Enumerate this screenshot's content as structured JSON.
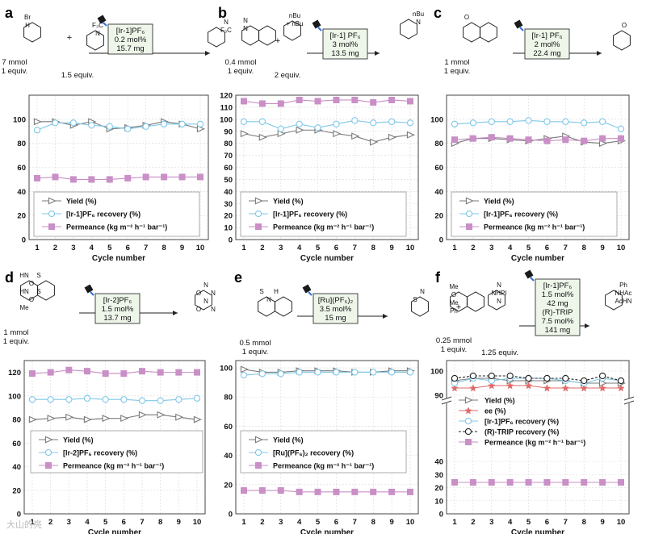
{
  "figure": {
    "watermark": "大山的亮"
  },
  "panels": [
    {
      "letter": "a",
      "scheme": {
        "catalyst_lines": [
          "[Ir-1]PF₆",
          "0.2 mol%",
          "15.7 mg"
        ],
        "reactant1": [
          "7 mmol",
          "1 equiv."
        ],
        "reactant2": [
          "1.5 equiv."
        ],
        "atoms": [
          "Br",
          "F₃C",
          "N",
          "H",
          "N",
          "F₃C"
        ]
      }
    },
    {
      "letter": "b",
      "scheme": {
        "catalyst_lines": [
          "[Ir-1] PF₆",
          "3 mol%",
          "13.5 mg"
        ],
        "reactant1": [
          "0.4 mmol",
          "1 equiv."
        ],
        "reactant2": [
          "2 equiv."
        ],
        "atoms": [
          "N",
          "nBu",
          "nBu",
          "N",
          "+ nBu",
          "N"
        ]
      }
    },
    {
      "letter": "c",
      "scheme": {
        "catalyst_lines": [
          "[Ir-1] PF₆",
          "2 mol%",
          "22.4 mg"
        ],
        "reactant1": [
          "1 mmol",
          "1 equiv."
        ],
        "reactant2": [],
        "atoms": [
          "O",
          "O"
        ]
      }
    },
    {
      "letter": "d",
      "scheme": {
        "catalyst_lines": [
          "[Ir-2]PF₆",
          "1.5 mol%",
          "13.7 mg"
        ],
        "reactant1": [
          "1 mmol",
          "1 equiv."
        ],
        "reactant2": [],
        "atoms": [
          "HN",
          "N",
          "S",
          "O",
          "O",
          "N",
          "HN",
          "N",
          "S",
          "O",
          "O",
          "N",
          "Me"
        ]
      }
    },
    {
      "letter": "e",
      "scheme": {
        "catalyst_lines": [
          "[Ru](PF₆)₂",
          "3.5 mol%",
          "15 mg"
        ],
        "reactant1": [
          "0.5 mmol",
          "1 equiv."
        ],
        "reactant2": [],
        "atoms": [
          "S",
          "N",
          "H",
          "S",
          "N"
        ]
      }
    },
    {
      "letter": "f",
      "scheme": {
        "catalyst_lines": [
          "[Ir-1]PF₆",
          "1.5 mol%",
          "42 mg",
          "(R)-TRIP",
          "7.5 mol%",
          "141 mg"
        ],
        "reactant1": [
          "0.25 mmol",
          "1 equiv."
        ],
        "reactant2": [
          "1.25 equiv."
        ],
        "atoms": [
          "Me",
          "N",
          "Ph",
          "O",
          "NHPI",
          "NHAc",
          "Me",
          "N",
          "AcHN",
          "Ph"
        ]
      }
    }
  ],
  "chart_data": [
    {
      "panel": "a",
      "type": "line",
      "xlabel": "Cycle number",
      "ylabel": "",
      "x": [
        1,
        2,
        3,
        4,
        5,
        6,
        7,
        8,
        9,
        10
      ],
      "ylim": [
        0,
        120
      ],
      "yticks": [
        0,
        20,
        40,
        60,
        80,
        100
      ],
      "grid": true,
      "legend_position": "bottom",
      "series": [
        {
          "name": "Yield (%)",
          "marker": "triangle",
          "color": "#7a7a7a",
          "values": [
            98,
            98,
            95,
            98,
            92,
            93,
            95,
            98,
            96,
            92
          ]
        },
        {
          "name": "[Ir-1]PF₆ recovery (%)",
          "marker": "circle",
          "color": "#7fc8e8",
          "values": [
            91,
            97,
            97,
            95,
            94,
            92,
            94,
            96,
            96,
            96
          ]
        },
        {
          "name": "Permeance (kg m⁻² h⁻¹ bar⁻¹)",
          "marker": "square",
          "color": "#c98fc6",
          "values": [
            51,
            52,
            50,
            50,
            50,
            51,
            52,
            52,
            52,
            52
          ]
        }
      ]
    },
    {
      "panel": "b",
      "type": "line",
      "xlabel": "Cycle number",
      "ylabel": "",
      "x": [
        1,
        2,
        3,
        4,
        5,
        6,
        7,
        8,
        9,
        10
      ],
      "ylim": [
        0,
        120
      ],
      "yticks": [
        0,
        10,
        20,
        30,
        40,
        50,
        60,
        70,
        80,
        90,
        100,
        110,
        120
      ],
      "grid": true,
      "legend_position": "bottom",
      "series": [
        {
          "name": "Yield (%)",
          "marker": "triangle",
          "color": "#7a7a7a",
          "values": [
            88,
            85,
            88,
            91,
            91,
            88,
            86,
            81,
            85,
            87
          ]
        },
        {
          "name": "[Ir-1]PF₆ recovery (%)",
          "marker": "circle",
          "color": "#7fc8e8",
          "values": [
            98,
            98,
            92,
            96,
            93,
            96,
            99,
            97,
            98,
            97
          ]
        },
        {
          "name": "Permeance (kg m⁻² h⁻¹ bar⁻¹)",
          "marker": "square",
          "color": "#c98fc6",
          "values": [
            115,
            113,
            113,
            116,
            115,
            116,
            116,
            114,
            116,
            115
          ]
        }
      ]
    },
    {
      "panel": "c",
      "type": "line",
      "xlabel": "Cycle number",
      "ylabel": "",
      "x": [
        1,
        2,
        3,
        4,
        5,
        6,
        7,
        8,
        9,
        10
      ],
      "ylim": [
        0,
        120
      ],
      "yticks": [
        0,
        20,
        40,
        60,
        80,
        100
      ],
      "grid": true,
      "legend_position": "bottom",
      "series": [
        {
          "name": "Yield (%)",
          "marker": "triangle",
          "color": "#7a7a7a",
          "values": [
            80,
            84,
            84,
            83,
            82,
            84,
            86,
            81,
            80,
            82
          ]
        },
        {
          "name": "[Ir-1]PF₆ recovery (%)",
          "marker": "circle",
          "color": "#7fc8e8",
          "values": [
            96,
            97,
            98,
            98,
            99,
            98,
            98,
            97,
            98,
            92
          ]
        },
        {
          "name": "Permeance (kg m⁻² h⁻¹ bar⁻¹)",
          "marker": "square",
          "color": "#c98fc6",
          "values": [
            83,
            84,
            85,
            84,
            83,
            82,
            83,
            82,
            84,
            84
          ]
        }
      ]
    },
    {
      "panel": "d",
      "type": "line",
      "xlabel": "Cycle number",
      "ylabel": "",
      "x": [
        1,
        2,
        3,
        4,
        5,
        6,
        7,
        8,
        9,
        10
      ],
      "ylim": [
        0,
        130
      ],
      "yticks": [
        0,
        20,
        40,
        60,
        80,
        100,
        120
      ],
      "grid": true,
      "legend_position": "bottom",
      "series": [
        {
          "name": "Yield (%)",
          "marker": "triangle",
          "color": "#7a7a7a",
          "values": [
            80,
            81,
            82,
            80,
            81,
            81,
            84,
            84,
            82,
            80
          ]
        },
        {
          "name": "[Ir-2]PF₆ recovery (%)",
          "marker": "circle",
          "color": "#7fc8e8",
          "values": [
            97,
            97,
            97,
            98,
            97,
            97,
            96,
            96,
            97,
            98
          ]
        },
        {
          "name": "Permeance (kg m⁻² h⁻¹ bar⁻¹)",
          "marker": "square",
          "color": "#c98fc6",
          "values": [
            119,
            120,
            122,
            121,
            119,
            119,
            121,
            120,
            120,
            120
          ]
        }
      ]
    },
    {
      "panel": "e",
      "type": "line",
      "xlabel": "Cycle number",
      "ylabel": "",
      "x": [
        1,
        2,
        3,
        4,
        5,
        6,
        7,
        8,
        9,
        10
      ],
      "ylim": [
        0,
        105
      ],
      "yticks": [
        0,
        20,
        40,
        60,
        80,
        100
      ],
      "grid": true,
      "legend_position": "bottom",
      "series": [
        {
          "name": "Yield (%)",
          "marker": "triangle",
          "color": "#7a7a7a",
          "values": [
            99,
            97,
            97,
            98,
            98,
            98,
            97,
            97,
            98,
            98
          ]
        },
        {
          "name": "[Ru](PF₆)₂ recovery (%)",
          "marker": "circle",
          "color": "#7fc8e8",
          "values": [
            95,
            96,
            96,
            97,
            97,
            97,
            97,
            97,
            97,
            97
          ]
        },
        {
          "name": "Permeance (kg m⁻² h⁻¹ bar⁻¹)",
          "marker": "square",
          "color": "#c98fc6",
          "values": [
            16,
            16,
            16,
            15,
            15,
            15,
            15,
            15,
            15,
            15
          ]
        }
      ]
    },
    {
      "panel": "f",
      "type": "line",
      "xlabel": "Cycle number",
      "ylabel": "",
      "x": [
        1,
        2,
        3,
        4,
        5,
        6,
        7,
        8,
        9,
        10
      ],
      "broken_axis": {
        "upper": [
          90,
          100
        ],
        "lower": [
          0,
          40
        ]
      },
      "yticks_upper": [
        90,
        100
      ],
      "yticks_lower": [
        0,
        10,
        20,
        30,
        40
      ],
      "grid": true,
      "legend_position": "middle",
      "series": [
        {
          "name": "Yield (%)",
          "marker": "triangle",
          "color": "#7a7a7a",
          "values": [
            96,
            97,
            97,
            96,
            96,
            96,
            96,
            95,
            95,
            95
          ]
        },
        {
          "name": "ee (%)",
          "marker": "star",
          "color": "#e06a6a",
          "values": [
            93,
            93,
            94,
            94,
            94,
            93,
            93,
            93,
            93,
            93
          ]
        },
        {
          "name": "[Ir-1]PF₆ recovery (%)",
          "marker": "circle",
          "color": "#7fc8e8",
          "values": [
            95,
            97,
            96,
            97,
            97,
            97,
            96,
            95,
            97,
            96
          ]
        },
        {
          "name": "(R)-TRIP recovery (%)",
          "marker": "circle-open-dashed",
          "color": "#222222",
          "values": [
            97,
            98,
            98,
            98,
            97,
            97,
            97,
            96,
            98,
            96
          ]
        },
        {
          "name": "Permeance (kg m⁻² h⁻¹ bar⁻¹)",
          "marker": "square",
          "color": "#c98fc6",
          "values": [
            24,
            24,
            24,
            24,
            24,
            24,
            24,
            24,
            24,
            24
          ]
        }
      ]
    }
  ]
}
